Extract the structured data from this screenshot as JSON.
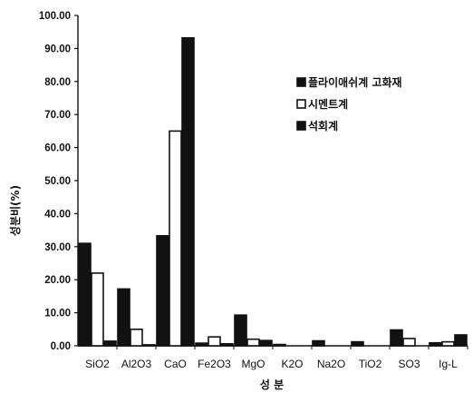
{
  "chart_data": {
    "type": "bar",
    "title": "",
    "xlabel": "성 분",
    "ylabel": "성분비(%)",
    "ylim": [
      0,
      100
    ],
    "y_ticks": [
      "100.00",
      "90.00",
      "80.00",
      "70.00",
      "60.00",
      "50.00",
      "40.00",
      "30.00",
      "20.00",
      "10.00",
      "0.00"
    ],
    "grid": false,
    "legend_position": "top-right",
    "categories": [
      "SiO2",
      "Al2O3",
      "CaO",
      "Fe2O3",
      "MgO",
      "K2O",
      "Na2O",
      "TiO2",
      "SO3",
      "Ig-L"
    ],
    "series": [
      {
        "name": "플라이애쉬계 고화재",
        "color": "#111111",
        "pattern": "solid",
        "values": [
          31.0,
          17.2,
          33.3,
          0.8,
          9.3,
          0.4,
          1.5,
          1.2,
          4.8,
          0.9
        ]
      },
      {
        "name": "시멘트계",
        "color": "#ffffff",
        "pattern": "hollow",
        "values": [
          22.0,
          5.0,
          65.0,
          2.7,
          2.0,
          0.0,
          0.0,
          0.0,
          2.2,
          1.2
        ]
      },
      {
        "name": "석회계",
        "color": "#111111",
        "pattern": "solid",
        "values": [
          1.4,
          0.3,
          93.2,
          0.6,
          1.6,
          0.0,
          0.0,
          0.0,
          0.0,
          3.3
        ]
      }
    ]
  }
}
